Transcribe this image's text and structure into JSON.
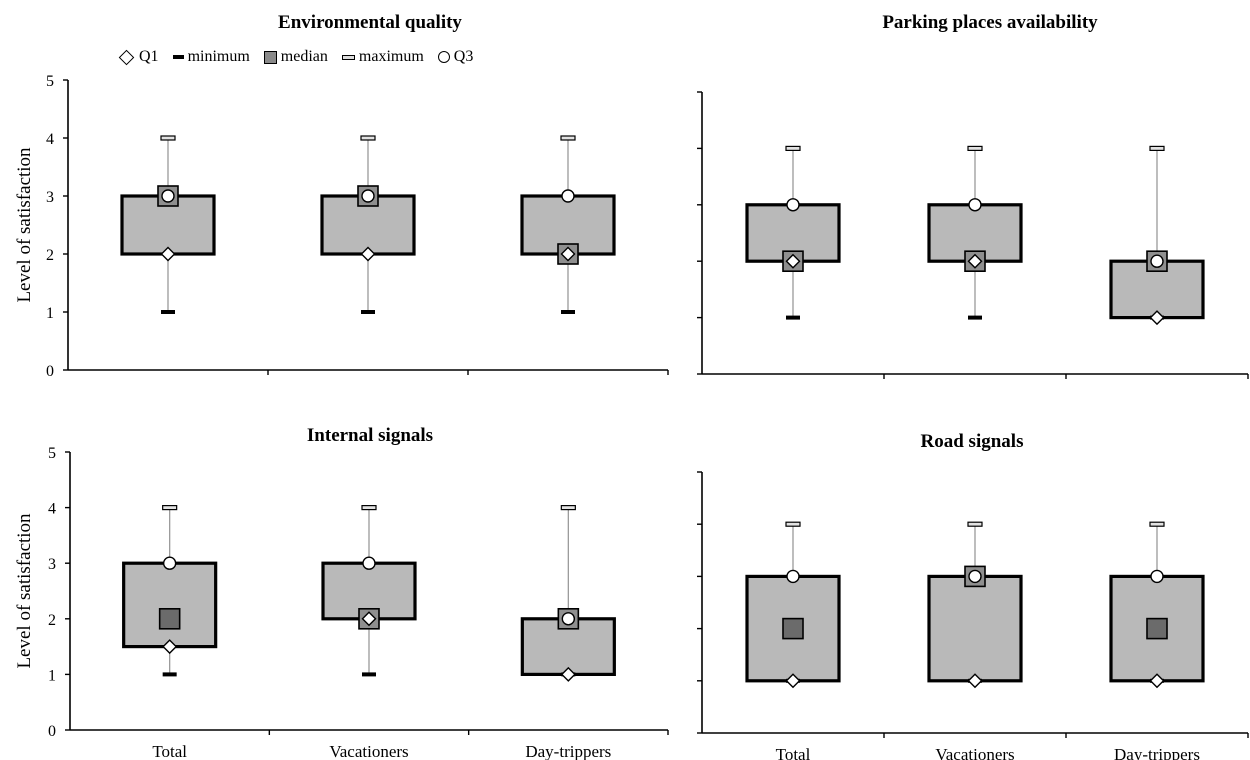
{
  "chart_data": [
    {
      "type": "boxplot",
      "title": "Environmental quality",
      "ylabel": "Level of satisfaction",
      "ylim": [
        0,
        5
      ],
      "yticks": [
        "0",
        "1",
        "2",
        "3",
        "4",
        "5"
      ],
      "show_y_tick_labels": true,
      "show_x_tick_labels": false,
      "categories": [
        "Total",
        "Vacationers",
        "Day-trippers"
      ],
      "series": [
        {
          "category": "Total",
          "min": 1,
          "q1": 2,
          "median": 3,
          "q3": 3,
          "max": 4
        },
        {
          "category": "Vacationers",
          "min": 1,
          "q1": 2,
          "median": 3,
          "q3": 3,
          "max": 4
        },
        {
          "category": "Day-trippers",
          "min": 1,
          "q1": 2,
          "median": 2,
          "q3": 3,
          "max": 4
        }
      ]
    },
    {
      "type": "boxplot",
      "title": "Parking places availability",
      "ylabel": "",
      "ylim": [
        0,
        5
      ],
      "show_y_tick_labels": false,
      "show_x_tick_labels": false,
      "categories": [
        "Total",
        "Vacationers",
        "Day-trippers"
      ],
      "series": [
        {
          "category": "Total",
          "min": 1,
          "q1": 2,
          "median": 2,
          "q3": 3,
          "max": 4
        },
        {
          "category": "Vacationers",
          "min": 1,
          "q1": 2,
          "median": 2,
          "q3": 3,
          "max": 4
        },
        {
          "category": "Day-trippers",
          "min": 1,
          "q1": 1,
          "median": 2,
          "q3": 2,
          "max": 4
        }
      ]
    },
    {
      "type": "boxplot",
      "title": "Internal signals",
      "ylabel": "Level of satisfaction",
      "ylim": [
        0,
        5
      ],
      "yticks": [
        "0",
        "1",
        "2",
        "3",
        "4",
        "5"
      ],
      "show_y_tick_labels": true,
      "show_x_tick_labels": true,
      "categories": [
        "Total",
        "Vacationers",
        "Day-trippers"
      ],
      "series": [
        {
          "category": "Total",
          "min": 1,
          "q1": 1.5,
          "median": 2,
          "q3": 3,
          "max": 4
        },
        {
          "category": "Vacationers",
          "min": 1,
          "q1": 2,
          "median": 2,
          "q3": 3,
          "max": 4
        },
        {
          "category": "Day-trippers",
          "min": 1,
          "q1": 1,
          "median": 2,
          "q3": 2,
          "max": 4
        }
      ]
    },
    {
      "type": "boxplot",
      "title": "Road signals",
      "ylabel": "",
      "ylim": [
        0,
        5
      ],
      "show_y_tick_labels": false,
      "show_x_tick_labels": true,
      "categories": [
        "Total",
        "Vacationers",
        "Day-trippers"
      ],
      "series": [
        {
          "category": "Total",
          "min": 1,
          "q1": 1,
          "median": 2,
          "q3": 3,
          "max": 4
        },
        {
          "category": "Vacationers",
          "min": 1,
          "q1": 1,
          "median": 3,
          "q3": 3,
          "max": 4
        },
        {
          "category": "Day-trippers",
          "min": 1,
          "q1": 1,
          "median": 2,
          "q3": 3,
          "max": 4
        }
      ]
    }
  ],
  "legend": {
    "placement": "top-left",
    "items": [
      {
        "label": "Q1",
        "marker": "diamond-icon"
      },
      {
        "label": "minimum",
        "marker": "min-bar-icon"
      },
      {
        "label": "median",
        "marker": "median-square-icon"
      },
      {
        "label": "maximum",
        "marker": "max-bar-icon"
      },
      {
        "label": "Q3",
        "marker": "circle-icon"
      }
    ]
  },
  "colors": {
    "box_fill": "#b9b9b9",
    "median_fill": "#8f8f8f",
    "median_fill_dark": "#6b6b6b",
    "whisker": "#9a9a9a",
    "stroke": "#000000"
  }
}
